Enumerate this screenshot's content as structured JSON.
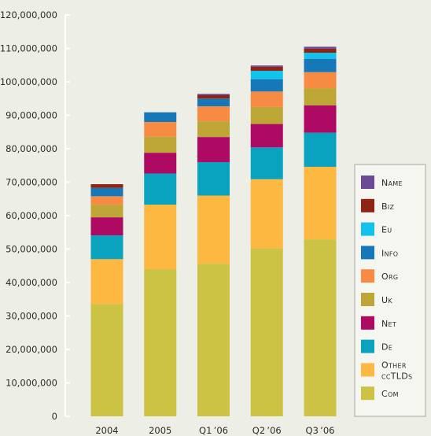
{
  "chart_data": {
    "type": "bar",
    "stacked": true,
    "categories": [
      "2004",
      "2005",
      "Q1 ’06",
      "Q2 ’06",
      "Q3 ’06"
    ],
    "ylim": [
      0,
      120000000
    ],
    "yticks": [
      "0",
      "10,000,000",
      "20,000,000",
      "30,000,000",
      "40,000,000",
      "50,000,000",
      "60,000,000",
      "70,000,000",
      "80,000,000",
      "90,000,000",
      "100,000,000",
      "110,000,000",
      "120,000,000"
    ],
    "legend_position": "right",
    "series": [
      {
        "name": "Com",
        "color": "#ccc244",
        "values": [
          33600000,
          44000000,
          45600000,
          50200000,
          52900000
        ]
      },
      {
        "name": "Other ccTLDs",
        "color": "#fcb840",
        "values": [
          13400000,
          19300000,
          20400000,
          20700000,
          21700000
        ]
      },
      {
        "name": "De",
        "color": "#09a3bf",
        "values": [
          7100000,
          9300000,
          10000000,
          9500000,
          10200000
        ]
      },
      {
        "name": "Net",
        "color": "#ae0a63",
        "values": [
          5400000,
          6200000,
          7500000,
          7000000,
          8200000
        ]
      },
      {
        "name": "Uk",
        "color": "#bea636",
        "values": [
          3700000,
          4800000,
          4700000,
          5100000,
          5100000
        ]
      },
      {
        "name": "Org",
        "color": "#f88b44",
        "values": [
          2600000,
          4400000,
          4500000,
          4600000,
          4800000
        ]
      },
      {
        "name": "Info",
        "color": "#1778b9",
        "values": [
          2500000,
          2900000,
          2300000,
          3700000,
          4000000
        ]
      },
      {
        "name": "Eu",
        "color": "#13c2ea",
        "values": [
          0,
          0,
          0,
          2500000,
          1800000
        ]
      },
      {
        "name": "Biz",
        "color": "#8f2414",
        "values": [
          1100000,
          0,
          1000000,
          1200000,
          1200000
        ]
      },
      {
        "name": "Name",
        "color": "#6b4b97",
        "values": [
          0,
          0,
          400000,
          400000,
          600000
        ]
      }
    ]
  }
}
